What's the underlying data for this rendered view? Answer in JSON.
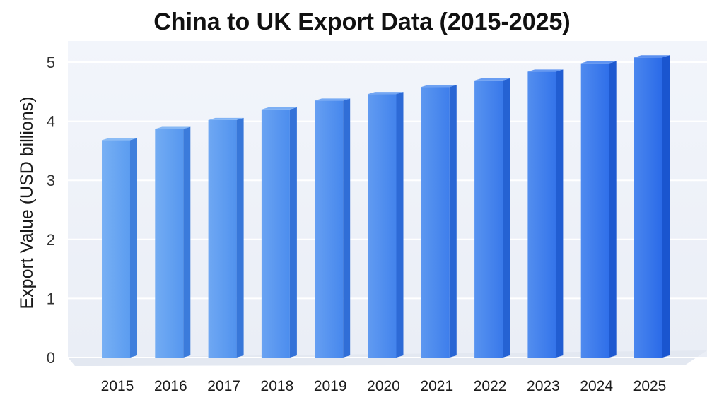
{
  "chart_data": {
    "type": "bar",
    "title": "China to UK Export Data (2015-2025)",
    "xlabel": "",
    "ylabel": "Export Value (USD billions)",
    "categories": [
      "2015",
      "2016",
      "2017",
      "2018",
      "2019",
      "2020",
      "2021",
      "2022",
      "2023",
      "2024",
      "2025"
    ],
    "values": [
      3.68,
      3.87,
      4.02,
      4.2,
      4.35,
      4.46,
      4.58,
      4.69,
      4.84,
      4.98,
      5.08
    ],
    "ylim": [
      0,
      5.2
    ],
    "yticks": [
      "0",
      "1",
      "2",
      "3",
      "4",
      "5"
    ],
    "grid": true,
    "legend": "none",
    "colors": {
      "bar_start": "#5b9cf0",
      "bar_end": "#2a6ae8",
      "bar_side_start": "#3f7fdc",
      "bar_side_end": "#1a55cf",
      "bar_top_start": "#8bbcf6",
      "bar_top_end": "#5a8ff0",
      "plot_bg": "#f4f6fb",
      "grid": "#ffffff",
      "floor": "#e3e8f1"
    }
  }
}
